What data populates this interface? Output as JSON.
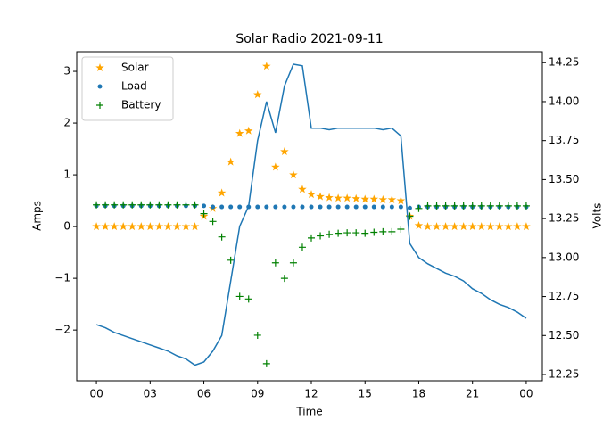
{
  "chart_data": {
    "type": "line",
    "title": "Solar Radio 2021-09-11",
    "x_label": "Time",
    "y_label": "Amps",
    "y2_label": "Volts",
    "x": [
      0,
      0.5,
      1,
      1.5,
      2,
      2.5,
      3,
      3.5,
      4,
      4.5,
      5,
      5.5,
      6,
      6.5,
      7,
      7.5,
      8,
      8.5,
      9,
      9.5,
      10,
      10.5,
      11,
      11.5,
      12,
      12.5,
      13,
      13.5,
      14,
      14.5,
      15,
      15.5,
      16,
      16.5,
      17,
      17.5,
      18,
      18.5,
      19,
      19.5,
      20,
      20.5,
      21,
      21.5,
      22,
      22.5,
      23,
      23.5,
      24
    ],
    "xlim": [
      -1.1,
      24.9
    ],
    "xticks": [
      {
        "value": 0,
        "label": "00"
      },
      {
        "value": 3,
        "label": "03"
      },
      {
        "value": 6,
        "label": "06"
      },
      {
        "value": 9,
        "label": "09"
      },
      12,
      15,
      18,
      21,
      {
        "value": 24,
        "label": "00"
      }
    ],
    "ylim": [
      -2.98,
      3.38
    ],
    "yticks": [
      {
        "value": -2,
        "label": "−2"
      },
      {
        "value": -1,
        "label": "−1"
      },
      0,
      1,
      2,
      3
    ],
    "y2lim": [
      12.21,
      14.32
    ],
    "y2ticks": [
      12.25,
      {
        "value": 12.5,
        "label": "12.50"
      },
      12.75,
      {
        "value": 13,
        "label": "13.00"
      },
      13.25,
      {
        "value": 13.5,
        "label": "13.50"
      },
      13.75,
      {
        "value": 14,
        "label": "14.00"
      },
      14.25
    ],
    "legend": "upper left",
    "series": [
      {
        "name": "Solar",
        "color": "#ffa500",
        "marker": "star",
        "values": [
          0,
          0,
          0,
          0,
          0,
          0,
          0,
          0,
          0,
          0,
          0,
          0,
          0.2,
          0.35,
          0.65,
          1.25,
          1.8,
          1.85,
          2.55,
          3.1,
          1.15,
          1.45,
          1.0,
          0.72,
          0.62,
          0.58,
          0.56,
          0.55,
          0.55,
          0.54,
          0.53,
          0.53,
          0.52,
          0.52,
          0.5,
          0.2,
          0.02,
          0,
          0,
          0,
          0,
          0,
          0,
          0,
          0,
          0,
          0,
          0,
          0
        ]
      },
      {
        "name": "Load",
        "color": "#1f77b4",
        "marker": "dot",
        "values": [
          0.4,
          0.4,
          0.4,
          0.4,
          0.4,
          0.4,
          0.4,
          0.4,
          0.4,
          0.4,
          0.4,
          0.4,
          0.4,
          0.38,
          0.38,
          0.38,
          0.38,
          0.38,
          0.38,
          0.38,
          0.38,
          0.38,
          0.38,
          0.38,
          0.38,
          0.38,
          0.38,
          0.38,
          0.38,
          0.38,
          0.38,
          0.38,
          0.38,
          0.38,
          0.38,
          0.36,
          0.38,
          0.38,
          0.38,
          0.38,
          0.38,
          0.38,
          0.38,
          0.38,
          0.38,
          0.38,
          0.38,
          0.38,
          0.38
        ]
      },
      {
        "name": "Battery",
        "color": "#008000",
        "marker": "plus",
        "values": [
          0.42,
          0.42,
          0.42,
          0.42,
          0.42,
          0.42,
          0.42,
          0.42,
          0.42,
          0.42,
          0.42,
          0.42,
          0.25,
          0.1,
          -0.2,
          -0.65,
          -1.35,
          -1.4,
          -2.1,
          -2.65,
          -0.7,
          -1.0,
          -0.7,
          -0.4,
          -0.22,
          -0.18,
          -0.15,
          -0.13,
          -0.12,
          -0.12,
          -0.13,
          -0.11,
          -0.1,
          -0.1,
          -0.05,
          0.2,
          0.35,
          0.4,
          0.4,
          0.4,
          0.4,
          0.4,
          0.4,
          0.4,
          0.4,
          0.4,
          0.4,
          0.4,
          0.4
        ]
      },
      {
        "color": "#1f77b4",
        "axis": "y2",
        "values": [
          12.57,
          12.55,
          12.52,
          12.5,
          12.48,
          12.46,
          12.44,
          12.42,
          12.4,
          12.37,
          12.35,
          12.31,
          12.33,
          12.4,
          12.5,
          12.85,
          13.2,
          13.33,
          13.75,
          14.0,
          13.8,
          14.1,
          14.24,
          14.23,
          13.83,
          13.83,
          13.82,
          13.83,
          13.83,
          13.83,
          13.83,
          13.83,
          13.82,
          13.83,
          13.78,
          13.09,
          13.0,
          12.96,
          12.93,
          12.9,
          12.88,
          12.85,
          12.8,
          12.77,
          12.73,
          12.7,
          12.68,
          12.65,
          12.61
        ]
      }
    ]
  }
}
